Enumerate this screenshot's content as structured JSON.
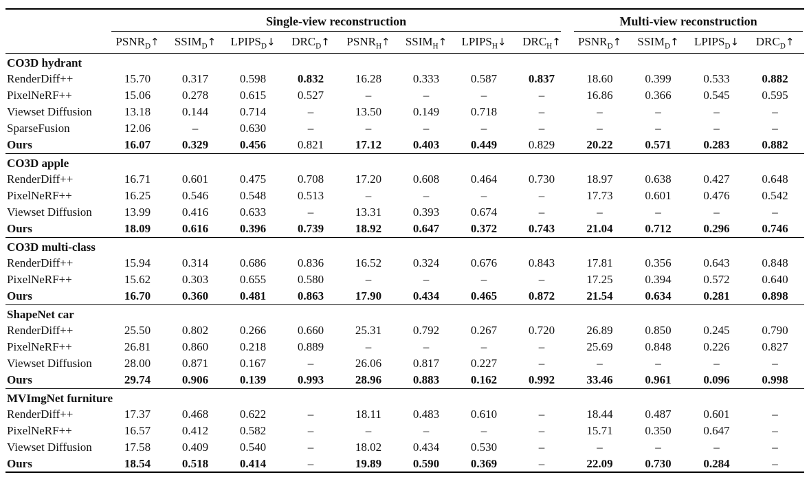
{
  "page": {
    "background": "#ffffff",
    "text_color": "#111111",
    "rule_color": "#000000"
  },
  "table": {
    "group_headers": [
      {
        "label": "Single-view reconstruction",
        "span": 8
      },
      {
        "label": "Multi-view reconstruction",
        "span": 4
      }
    ],
    "metric_columns": [
      {
        "name": "PSNR",
        "sub": "D",
        "arrow": "↑"
      },
      {
        "name": "SSIM",
        "sub": "D",
        "arrow": "↑"
      },
      {
        "name": "LPIPS",
        "sub": "D",
        "arrow": "↓"
      },
      {
        "name": "DRC",
        "sub": "D",
        "arrow": "↑"
      },
      {
        "name": "PSNR",
        "sub": "H",
        "arrow": "↑"
      },
      {
        "name": "SSIM",
        "sub": "H",
        "arrow": "↑"
      },
      {
        "name": "LPIPS",
        "sub": "H",
        "arrow": "↓"
      },
      {
        "name": "DRC",
        "sub": "H",
        "arrow": "↑"
      },
      {
        "name": "PSNR",
        "sub": "D",
        "arrow": "↑"
      },
      {
        "name": "SSIM",
        "sub": "D",
        "arrow": "↑"
      },
      {
        "name": "LPIPS",
        "sub": "D",
        "arrow": "↓"
      },
      {
        "name": "DRC",
        "sub": "D",
        "arrow": "↑"
      }
    ],
    "sections": [
      {
        "title": "CO3D hydrant",
        "rows": [
          {
            "method": "RenderDiff++",
            "method_bold": false,
            "values": [
              "15.70",
              "0.317",
              "0.598",
              "0.832",
              "16.28",
              "0.333",
              "0.587",
              "0.837",
              "18.60",
              "0.399",
              "0.533",
              "0.882"
            ],
            "bold": [
              3,
              7,
              11
            ]
          },
          {
            "method": "PixelNeRF++",
            "method_bold": false,
            "values": [
              "15.06",
              "0.278",
              "0.615",
              "0.527",
              "–",
              "–",
              "–",
              "–",
              "16.86",
              "0.366",
              "0.545",
              "0.595"
            ],
            "bold": []
          },
          {
            "method": "Viewset Diffusion",
            "method_bold": false,
            "values": [
              "13.18",
              "0.144",
              "0.714",
              "–",
              "13.50",
              "0.149",
              "0.718",
              "–",
              "–",
              "–",
              "–",
              "–"
            ],
            "bold": []
          },
          {
            "method": "SparseFusion",
            "method_bold": false,
            "values": [
              "12.06",
              "–",
              "0.630",
              "–",
              "–",
              "–",
              "–",
              "–",
              "–",
              "–",
              "–",
              "–"
            ],
            "bold": []
          },
          {
            "method": "Ours",
            "method_bold": true,
            "values": [
              "16.07",
              "0.329",
              "0.456",
              "0.821",
              "17.12",
              "0.403",
              "0.449",
              "0.829",
              "20.22",
              "0.571",
              "0.283",
              "0.882"
            ],
            "bold": [
              0,
              1,
              2,
              4,
              5,
              6,
              8,
              9,
              10,
              11
            ]
          }
        ]
      },
      {
        "title": "CO3D apple",
        "rows": [
          {
            "method": "RenderDiff++",
            "method_bold": false,
            "values": [
              "16.71",
              "0.601",
              "0.475",
              "0.708",
              "17.20",
              "0.608",
              "0.464",
              "0.730",
              "18.97",
              "0.638",
              "0.427",
              "0.648"
            ],
            "bold": []
          },
          {
            "method": "PixelNeRF++",
            "method_bold": false,
            "values": [
              "16.25",
              "0.546",
              "0.548",
              "0.513",
              "–",
              "–",
              "–",
              "–",
              "17.73",
              "0.601",
              "0.476",
              "0.542"
            ],
            "bold": []
          },
          {
            "method": "Viewset Diffusion",
            "method_bold": false,
            "values": [
              "13.99",
              "0.416",
              "0.633",
              "–",
              "13.31",
              "0.393",
              "0.674",
              "–",
              "–",
              "–",
              "–",
              "–"
            ],
            "bold": []
          },
          {
            "method": "Ours",
            "method_bold": true,
            "values": [
              "18.09",
              "0.616",
              "0.396",
              "0.739",
              "18.92",
              "0.647",
              "0.372",
              "0.743",
              "21.04",
              "0.712",
              "0.296",
              "0.746"
            ],
            "bold": [
              0,
              1,
              2,
              3,
              4,
              5,
              6,
              7,
              8,
              9,
              10,
              11
            ]
          }
        ]
      },
      {
        "title": "CO3D multi-class",
        "rows": [
          {
            "method": "RenderDiff++",
            "method_bold": false,
            "values": [
              "15.94",
              "0.314",
              "0.686",
              "0.836",
              "16.52",
              "0.324",
              "0.676",
              "0.843",
              "17.81",
              "0.356",
              "0.643",
              "0.848"
            ],
            "bold": []
          },
          {
            "method": "PixelNeRF++",
            "method_bold": false,
            "values": [
              "15.62",
              "0.303",
              "0.655",
              "0.580",
              "–",
              "–",
              "–",
              "–",
              "17.25",
              "0.394",
              "0.572",
              "0.640"
            ],
            "bold": []
          },
          {
            "method": "Ours",
            "method_bold": true,
            "values": [
              "16.70",
              "0.360",
              "0.481",
              "0.863",
              "17.90",
              "0.434",
              "0.465",
              "0.872",
              "21.54",
              "0.634",
              "0.281",
              "0.898"
            ],
            "bold": [
              0,
              1,
              2,
              3,
              4,
              5,
              6,
              7,
              8,
              9,
              10,
              11
            ]
          }
        ]
      },
      {
        "title": "ShapeNet car",
        "rows": [
          {
            "method": "RenderDiff++",
            "method_bold": false,
            "values": [
              "25.50",
              "0.802",
              "0.266",
              "0.660",
              "25.31",
              "0.792",
              "0.267",
              "0.720",
              "26.89",
              "0.850",
              "0.245",
              "0.790"
            ],
            "bold": []
          },
          {
            "method": "PixelNeRF++",
            "method_bold": false,
            "values": [
              "26.81",
              "0.860",
              "0.218",
              "0.889",
              "–",
              "–",
              "–",
              "–",
              "25.69",
              "0.848",
              "0.226",
              "0.827"
            ],
            "bold": []
          },
          {
            "method": "Viewset Diffusion",
            "method_bold": false,
            "values": [
              "28.00",
              "0.871",
              "0.167",
              "–",
              "26.06",
              "0.817",
              "0.227",
              "–",
              "–",
              "–",
              "–",
              "–"
            ],
            "bold": []
          },
          {
            "method": "Ours",
            "method_bold": true,
            "values": [
              "29.74",
              "0.906",
              "0.139",
              "0.993",
              "28.96",
              "0.883",
              "0.162",
              "0.992",
              "33.46",
              "0.961",
              "0.096",
              "0.998"
            ],
            "bold": [
              0,
              1,
              2,
              3,
              4,
              5,
              6,
              7,
              8,
              9,
              10,
              11
            ]
          }
        ]
      },
      {
        "title": "MVImgNet furniture",
        "rows": [
          {
            "method": "RenderDiff++",
            "method_bold": false,
            "values": [
              "17.37",
              "0.468",
              "0.622",
              "–",
              "18.11",
              "0.483",
              "0.610",
              "–",
              "18.44",
              "0.487",
              "0.601",
              "–"
            ],
            "bold": []
          },
          {
            "method": "PixelNeRF++",
            "method_bold": false,
            "values": [
              "16.57",
              "0.412",
              "0.582",
              "–",
              "–",
              "–",
              "–",
              "–",
              "15.71",
              "0.350",
              "0.647",
              "–"
            ],
            "bold": []
          },
          {
            "method": "Viewset Diffusion",
            "method_bold": false,
            "values": [
              "17.58",
              "0.409",
              "0.540",
              "–",
              "18.02",
              "0.434",
              "0.530",
              "–",
              "–",
              "–",
              "–",
              "–"
            ],
            "bold": []
          },
          {
            "method": "Ours",
            "method_bold": true,
            "values": [
              "18.54",
              "0.518",
              "0.414",
              "–",
              "19.89",
              "0.590",
              "0.369",
              "–",
              "22.09",
              "0.730",
              "0.284",
              "–"
            ],
            "bold": [
              0,
              1,
              2,
              4,
              5,
              6,
              8,
              9,
              10
            ]
          }
        ]
      }
    ]
  }
}
